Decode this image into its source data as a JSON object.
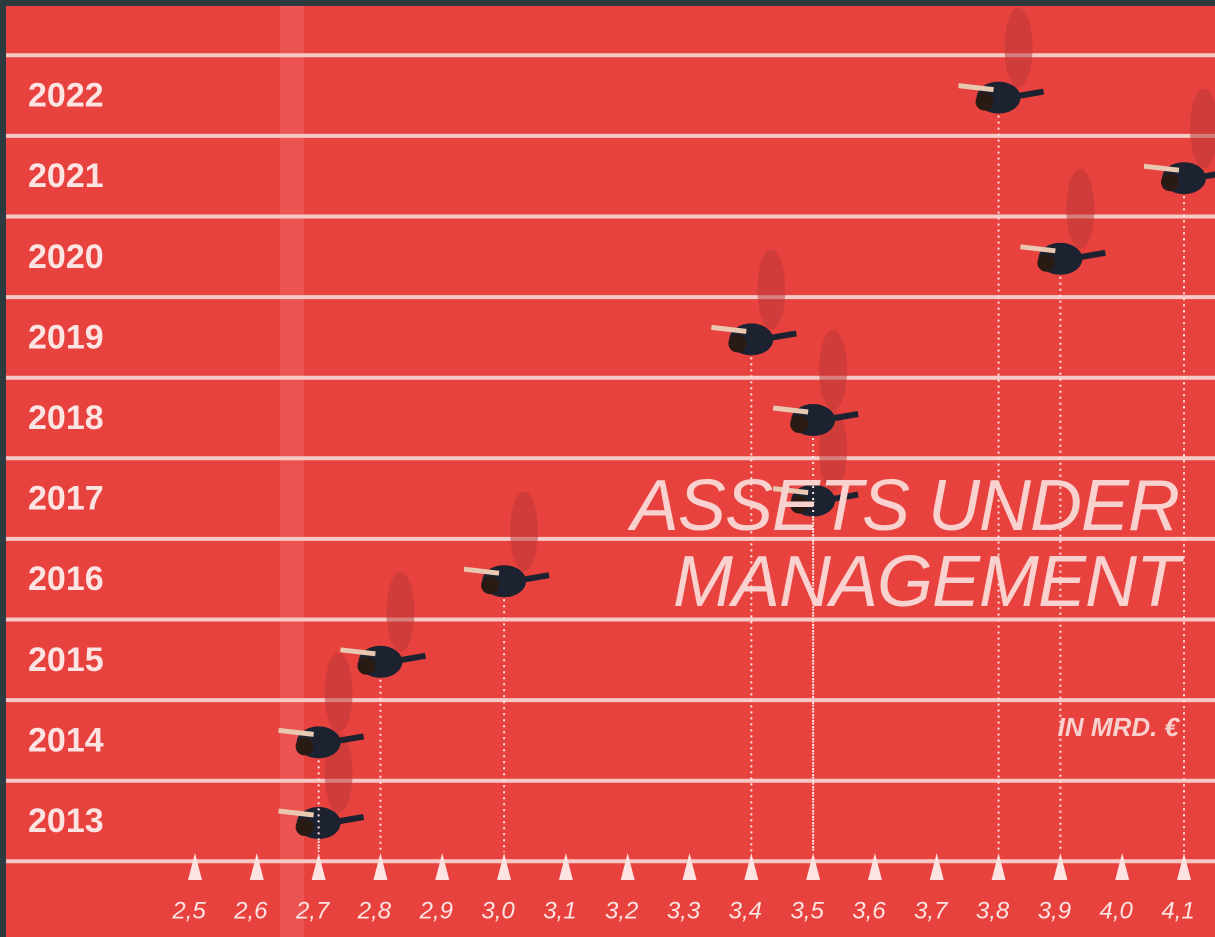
{
  "chart_data": {
    "type": "dot",
    "title": "ASSETS UNDER MANAGEMENT",
    "subtitle": "IN MRD. €",
    "categories": [
      "2013",
      "2014",
      "2015",
      "2016",
      "2017",
      "2018",
      "2019",
      "2020",
      "2021",
      "2022"
    ],
    "values": [
      2.7,
      2.7,
      2.8,
      3.0,
      3.5,
      3.5,
      3.4,
      3.9,
      4.1,
      3.8
    ],
    "color": "#1c2230",
    "xlim": [
      2.5,
      4.1
    ],
    "xticks": [
      {
        "value": 2.5,
        "label": "2,5"
      },
      {
        "value": 2.6,
        "label": "2,6"
      },
      {
        "value": 2.7,
        "label": "2,7"
      },
      {
        "value": 2.8,
        "label": "2,8"
      },
      {
        "value": 2.9,
        "label": "2,9"
      },
      {
        "value": 3.0,
        "label": "3,0"
      },
      {
        "value": 3.1,
        "label": "3,1"
      },
      {
        "value": 3.2,
        "label": "3,2"
      },
      {
        "value": 3.3,
        "label": "3,3"
      },
      {
        "value": 3.4,
        "label": "3,4"
      },
      {
        "value": 3.5,
        "label": "3,5"
      },
      {
        "value": 3.6,
        "label": "3,6"
      },
      {
        "value": 3.7,
        "label": "3,7"
      },
      {
        "value": 3.8,
        "label": "3,8"
      },
      {
        "value": 3.9,
        "label": "3,9"
      },
      {
        "value": 4.0,
        "label": "4,0"
      },
      {
        "value": 4.1,
        "label": "4,1"
      }
    ]
  }
}
